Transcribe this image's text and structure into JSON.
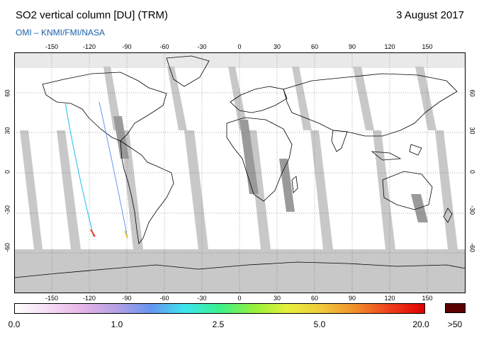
{
  "header": {
    "title": "SO2 vertical column [DU] (TRM)",
    "date": "3 August 2017",
    "credit": "OMI  –  KNMI/FMI/NASA"
  },
  "map": {
    "projection": "equirectangular",
    "lon_range": [
      -180,
      180
    ],
    "lat_range": [
      -90,
      90
    ],
    "lon_ticks": [
      "-150",
      "-120",
      "-90",
      "-60",
      "-30",
      "0",
      "30",
      "60",
      "90",
      "120",
      "150"
    ],
    "lon_tick_values": [
      -150,
      -120,
      -90,
      -60,
      -30,
      0,
      30,
      60,
      90,
      120,
      150
    ],
    "lat_ticks": [
      "60",
      "30",
      "0",
      "-30",
      "-60"
    ],
    "lat_tick_values": [
      60,
      30,
      0,
      -30,
      -60
    ],
    "colors": {
      "no_data": "#c8c8c8",
      "orbit_gap": "#9a9a9a",
      "land_gray": "#a8a8a8",
      "coastline": "#000000",
      "background": "#ffffff"
    }
  },
  "colorbar": {
    "labels": [
      "0.0",
      "1.0",
      "2.5",
      "5.0",
      "20.0"
    ],
    "label_values": [
      0,
      1.0,
      2.5,
      5.0,
      20.0
    ],
    "overflow_label": ">50",
    "overflow_color": "#5a0000",
    "stops": [
      "#ffffff",
      "#f6dcf6",
      "#e6b4e6",
      "#b4a0e6",
      "#6496f0",
      "#3ce6f0",
      "#3cf08c",
      "#96f03c",
      "#e6f03c",
      "#f0c83c",
      "#f08c28",
      "#f03c1e",
      "#dc0000"
    ]
  }
}
